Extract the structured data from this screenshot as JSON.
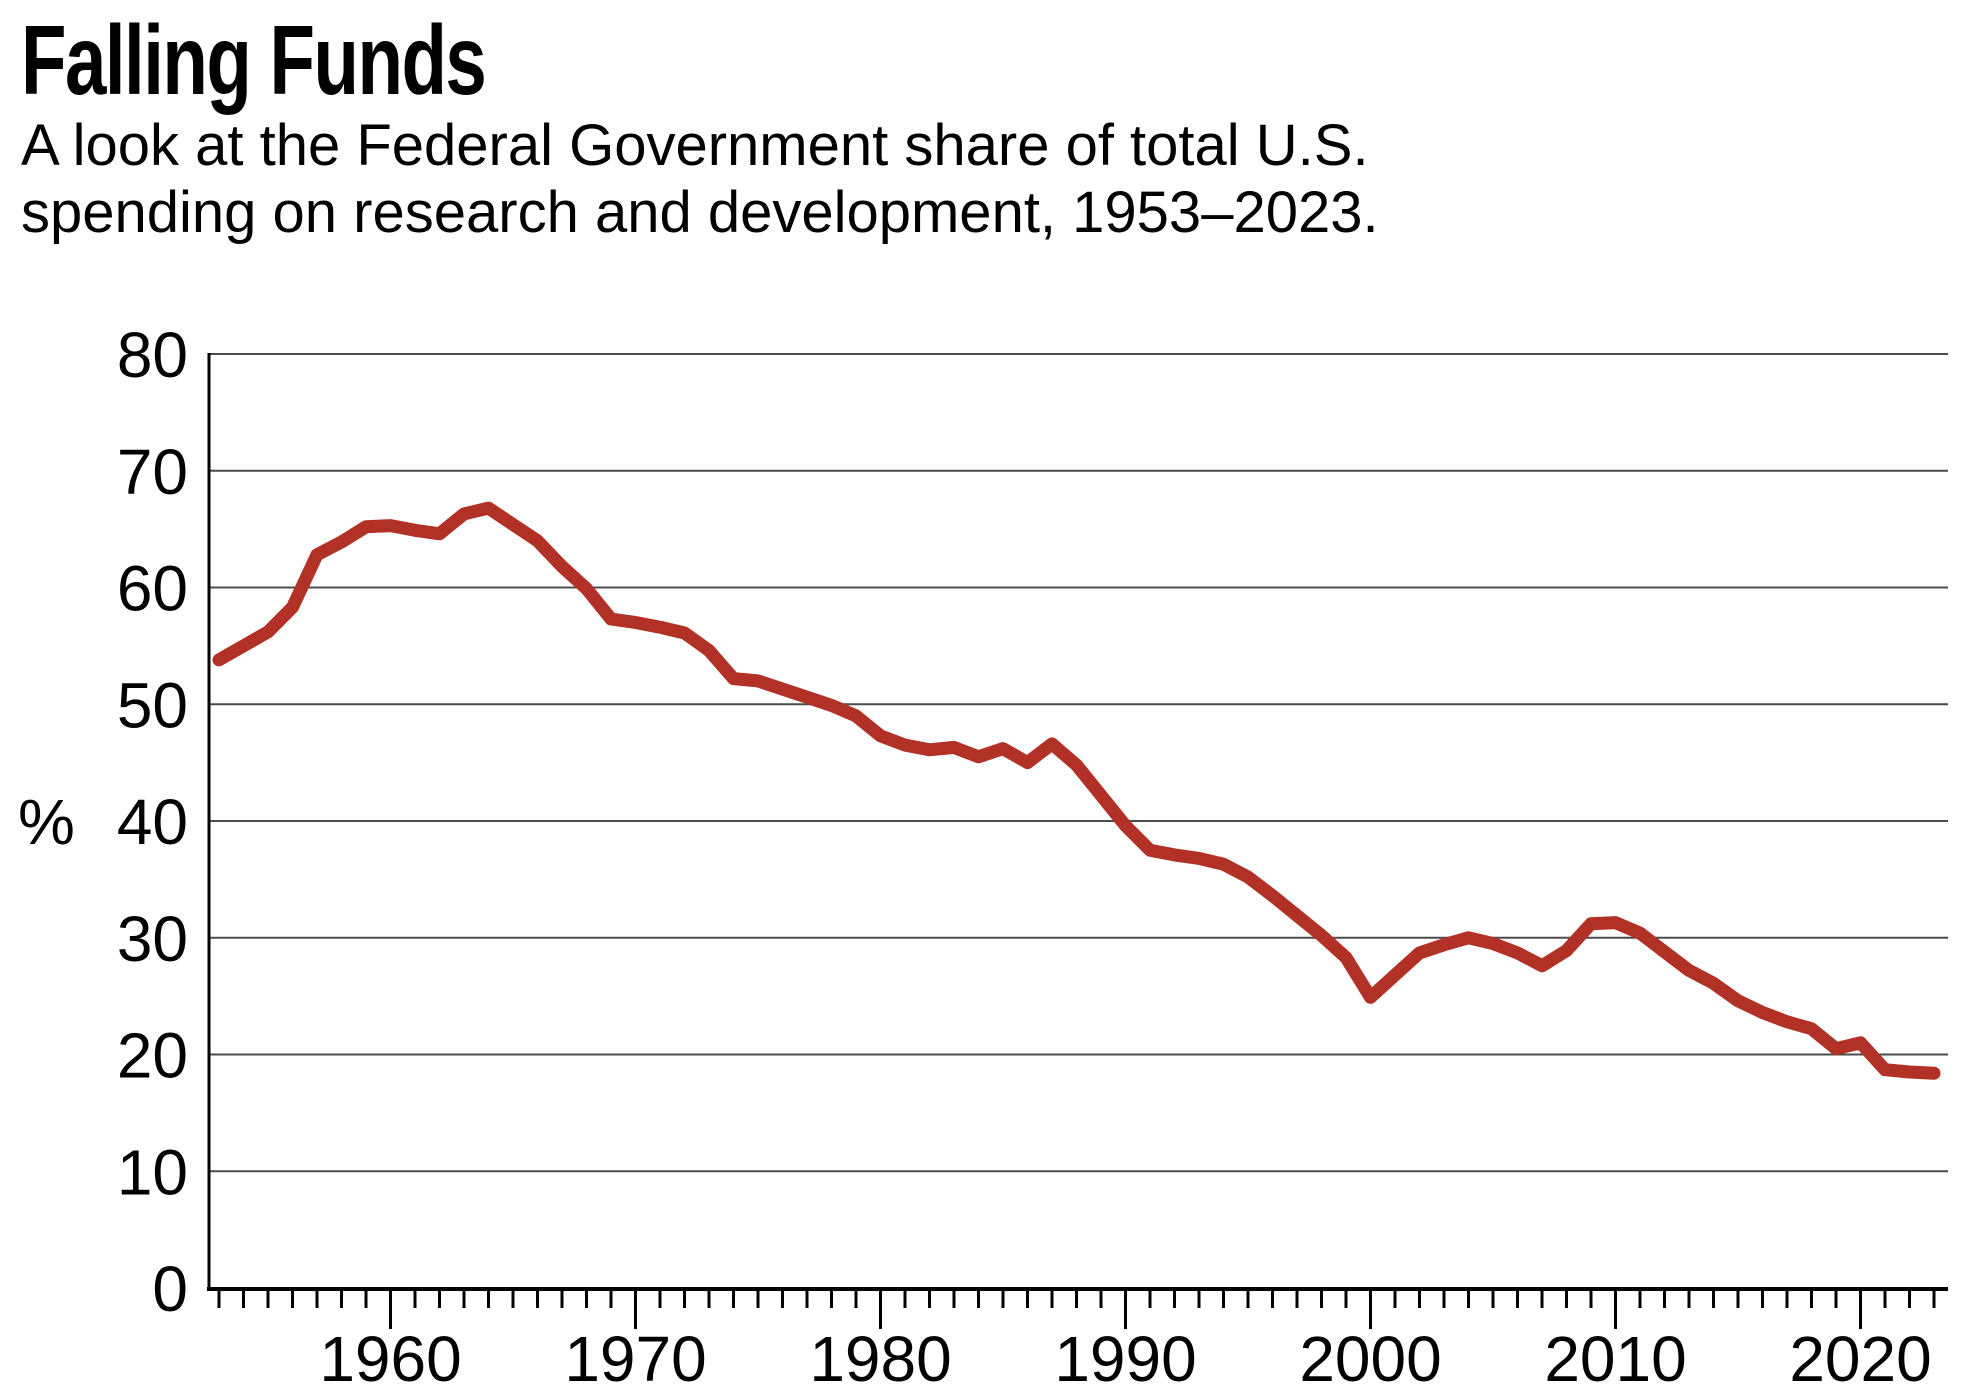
{
  "header": {
    "title": "Falling Funds",
    "subtitle_line1": "A look at the Federal Government share of total U.S.",
    "subtitle_line2": "spending on research and development, 1953–2023."
  },
  "chart_data": {
    "type": "line",
    "title": "Falling Funds",
    "subtitle": "A look at the Federal Government share of total U.S. spending on research and development, 1953–2023.",
    "ylabel": "%",
    "xlabel": "",
    "ylim": [
      0,
      80
    ],
    "xlim": [
      1952,
      2024
    ],
    "grid": "horizontal",
    "yticks": [
      0,
      10,
      20,
      30,
      40,
      50,
      60,
      70,
      80
    ],
    "xtick_labels": [
      "1960",
      "1970",
      "1980",
      "1990",
      "2000",
      "2010",
      "2020"
    ],
    "xtick_label_years": [
      1960,
      1970,
      1980,
      1990,
      2000,
      2010,
      2020
    ],
    "minor_ticks": "every year 1953-2023",
    "colors": {
      "line": "#b13127",
      "gridline": "#4c4c4c",
      "axis": "#000000"
    },
    "x": [
      1953,
      1954,
      1955,
      1956,
      1957,
      1958,
      1959,
      1960,
      1961,
      1962,
      1963,
      1964,
      1965,
      1966,
      1967,
      1968,
      1969,
      1970,
      1971,
      1972,
      1973,
      1974,
      1975,
      1976,
      1977,
      1978,
      1979,
      1980,
      1981,
      1982,
      1983,
      1984,
      1985,
      1986,
      1987,
      1988,
      1989,
      1990,
      1991,
      1992,
      1993,
      1994,
      1995,
      1996,
      1997,
      1998,
      1999,
      2000,
      2001,
      2002,
      2003,
      2004,
      2005,
      2006,
      2007,
      2008,
      2009,
      2010,
      2011,
      2012,
      2013,
      2014,
      2015,
      2016,
      2017,
      2018,
      2019,
      2020,
      2021,
      2022,
      2023
    ],
    "series": [
      {
        "name": "Federal Government share of total U.S. R&D spending (%)",
        "color": "#b13127",
        "values": [
          53.8,
          55.0,
          56.2,
          58.3,
          62.8,
          63.9,
          65.2,
          65.3,
          64.9,
          64.6,
          66.3,
          66.8,
          65.4,
          64.0,
          61.8,
          59.9,
          57.3,
          57.0,
          56.6,
          56.1,
          54.6,
          52.2,
          52.0,
          51.3,
          50.6,
          49.9,
          49.0,
          47.3,
          46.5,
          46.1,
          46.3,
          45.5,
          46.2,
          45.0,
          46.6,
          44.8,
          42.2,
          39.6,
          37.5,
          37.1,
          36.8,
          36.3,
          35.2,
          33.6,
          31.9,
          30.2,
          28.3,
          24.9,
          26.8,
          28.7,
          29.4,
          30.0,
          29.5,
          28.7,
          27.6,
          28.9,
          31.2,
          31.3,
          30.4,
          28.8,
          27.2,
          26.1,
          24.6,
          23.6,
          22.8,
          22.2,
          20.5,
          21.0,
          18.7,
          18.5,
          18.4
        ]
      }
    ]
  }
}
